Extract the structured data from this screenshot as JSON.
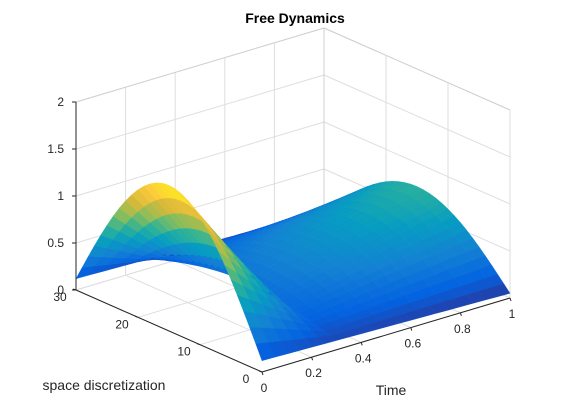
{
  "chart_data": {
    "type": "surface",
    "title": "Free Dynamics",
    "xlabel": "Time",
    "ylabel": "space discretization",
    "zlabel": "",
    "xlim": [
      0,
      1
    ],
    "ylim": [
      0,
      30
    ],
    "zlim": [
      0,
      2
    ],
    "x_ticks": [
      0,
      0.2,
      0.4,
      0.6,
      0.8,
      1
    ],
    "x_tick_labels": [
      "0",
      "0.2",
      "0.4",
      "0.6",
      "0.8",
      "1"
    ],
    "y_ticks": [
      0,
      10,
      20,
      30
    ],
    "y_tick_labels": [
      "0",
      "10",
      "20",
      "30"
    ],
    "z_ticks": [
      0,
      0.5,
      1,
      1.5,
      2
    ],
    "z_tick_labels": [
      "0",
      "0.5",
      "1",
      "1.5",
      "2"
    ],
    "grid": true,
    "colormap": "parula",
    "surface": {
      "time_samples": 21,
      "space_samples": 31,
      "initial_profile_peak": 1.55,
      "mid_profile_peak": 0.3,
      "final_profile_peak": 0.75,
      "initial_edge_value": 0.12,
      "final_edge_value": 0.05
    },
    "colors": {
      "axis": "#262626",
      "grid": "#dedede",
      "box": "#d0d0d0"
    }
  }
}
